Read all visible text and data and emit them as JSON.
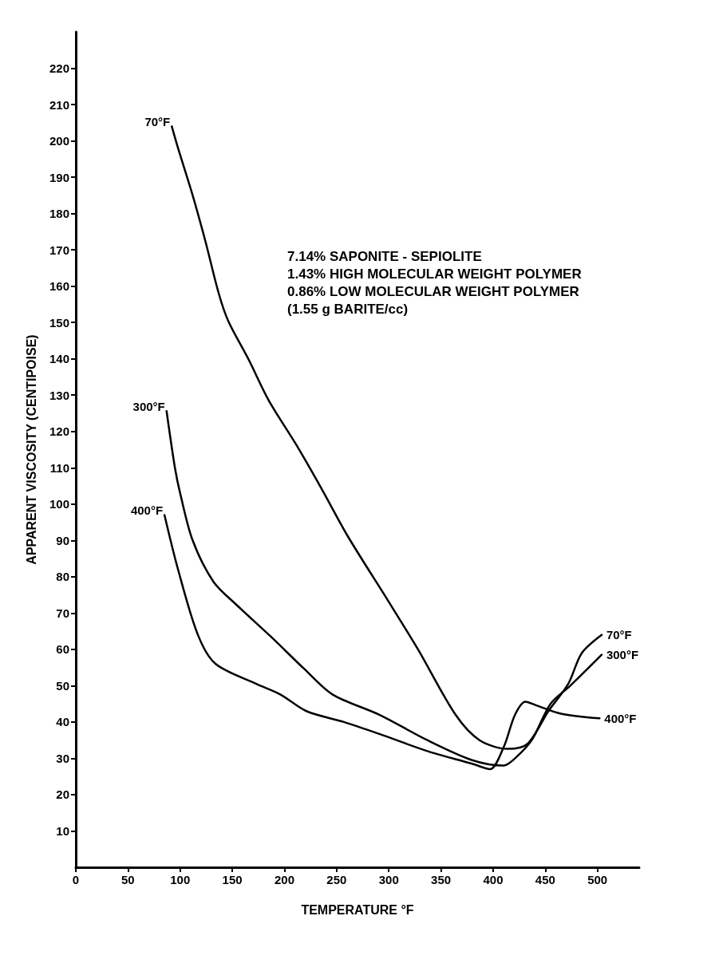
{
  "chart_data": {
    "type": "line",
    "xlabel": "TEMPERATURE °F",
    "ylabel": "APPARENT VISCOSITY (CENTIPOISE)",
    "annotations": [
      "7.14% SAPONITE - SEPIOLITE\n1.43% HIGH MOLECULAR WEIGHT POLYMER\n0.86% LOW MOLECULAR WEIGHT POLYMER\n(1.55 g BARITE/cc)"
    ],
    "xlim": [
      0,
      540
    ],
    "xticks": [
      0,
      50,
      100,
      150,
      200,
      250,
      300,
      350,
      400,
      450,
      500
    ],
    "ylim": [
      0,
      230
    ],
    "yticks": [
      10,
      20,
      30,
      40,
      50,
      60,
      70,
      80,
      90,
      100,
      110,
      120,
      130,
      140,
      150,
      160,
      170,
      180,
      190,
      200,
      210,
      220
    ],
    "grid": false,
    "legend": false,
    "marker": "none",
    "line_style": "solid",
    "series": [
      {
        "name": "70°F",
        "color": "#000000",
        "x": [
          92,
          98,
          112,
          124,
          137,
          146,
          166,
          185,
          212,
          236,
          261,
          298,
          328,
          364,
          387,
          414,
          433,
          453,
          472,
          485,
          504
        ],
        "values": [
          204,
          198,
          185,
          172.6,
          158,
          150.5,
          139.6,
          128.5,
          116,
          104,
          91,
          74,
          60,
          42,
          35,
          32.6,
          34,
          43,
          50.5,
          59,
          64
        ]
      },
      {
        "name": "300°F",
        "color": "#000000",
        "x": [
          87,
          95,
          100,
          112,
          132,
          155,
          187,
          219,
          246,
          291,
          337,
          380,
          410,
          421,
          437,
          455,
          474,
          504
        ],
        "values": [
          125.6,
          110,
          103,
          90,
          78.6,
          72,
          63.5,
          54.6,
          47.6,
          42,
          35,
          29.5,
          28,
          30,
          35,
          45,
          50,
          58.5
        ]
      },
      {
        "name": "400°F",
        "color": "#000000",
        "x": [
          85,
          98,
          117,
          134,
          173,
          196,
          221,
          257,
          291,
          337,
          380,
          397,
          410,
          421,
          431,
          442,
          465,
          502
        ],
        "values": [
          97,
          82,
          64,
          56,
          50.5,
          47.6,
          43,
          40,
          36.7,
          32,
          28.5,
          27,
          33,
          42,
          45.6,
          44.5,
          42.3,
          41
        ]
      }
    ]
  }
}
